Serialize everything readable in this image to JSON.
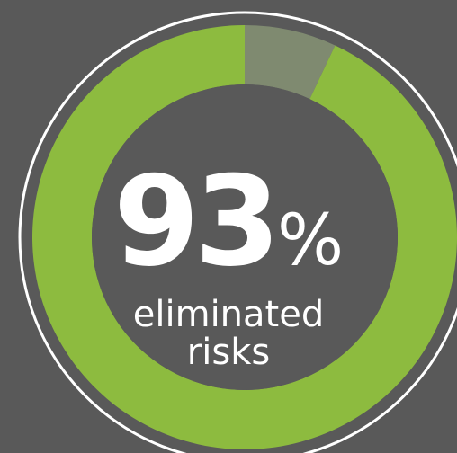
{
  "chart_data": {
    "type": "pie",
    "style": "donut",
    "values": [
      93,
      7
    ],
    "value": 93,
    "unit": "%",
    "caption": [
      "eliminated",
      "risks"
    ],
    "colors": {
      "filled": "#8dbb3f",
      "remaining": "#7f8a70",
      "background": "#595959",
      "outline": "#ffffff"
    }
  }
}
